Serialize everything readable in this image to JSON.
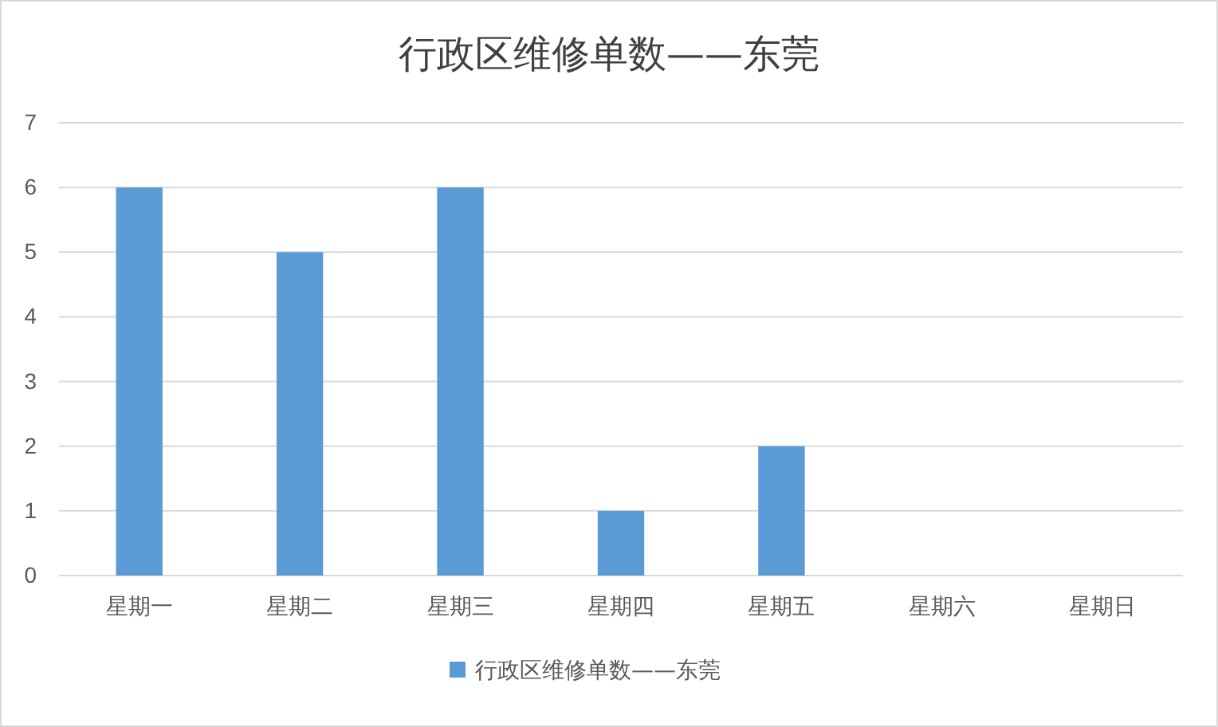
{
  "chart_data": {
    "type": "bar",
    "title": "行政区维修单数——东莞",
    "categories": [
      "星期一",
      "星期二",
      "星期三",
      "星期四",
      "星期五",
      "星期六",
      "星期日"
    ],
    "series": [
      {
        "name": "行政区维修单数——东莞",
        "color": "#5b9bd5",
        "values": [
          6,
          5,
          6,
          1,
          2,
          0,
          0
        ]
      }
    ],
    "ylim": [
      0,
      7
    ],
    "yticks": [
      0,
      1,
      2,
      3,
      4,
      5,
      6,
      7
    ],
    "grid": "y",
    "legend": "bottom"
  }
}
